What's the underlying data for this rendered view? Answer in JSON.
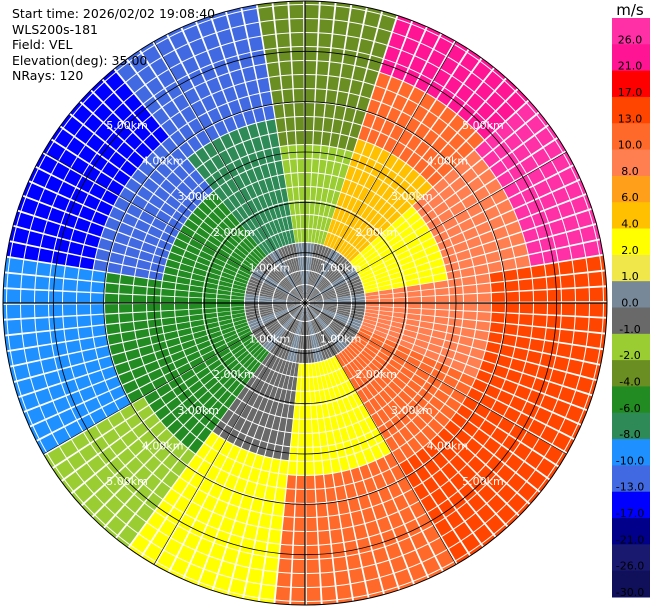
{
  "header": {
    "start_time": "Start time: 2026/02/02 19:08:40",
    "instrument": "WLS200s-181",
    "field": "Field: VEL",
    "elevation": "Elevation(deg): 35.00",
    "nrays": "NRays: 120"
  },
  "range_rings": [
    {
      "km": 1,
      "label": "1.00km"
    },
    {
      "km": 2,
      "label": "2.00km"
    },
    {
      "km": 3,
      "label": "3.00km"
    },
    {
      "km": 4,
      "label": "4.00km"
    },
    {
      "km": 5,
      "label": "5.00km"
    }
  ],
  "max_range_km": 6.0,
  "rays": 120,
  "colorbar": {
    "unit": "m/s",
    "bins": [
      {
        "label": "26.0",
        "color": "#ff2fa6"
      },
      {
        "label": "21.0",
        "color": "#ff1493"
      },
      {
        "label": "17.0",
        "color": "#ff0000"
      },
      {
        "label": "13.0",
        "color": "#ff4500"
      },
      {
        "label": "10.0",
        "color": "#ff6a2a"
      },
      {
        "label": "8.0",
        "color": "#ff7f50"
      },
      {
        "label": "6.0",
        "color": "#ff9f1a"
      },
      {
        "label": "4.0",
        "color": "#ffc000"
      },
      {
        "label": "2.0",
        "color": "#ffff00"
      },
      {
        "label": "1.0",
        "color": "#f0e84a"
      },
      {
        "label": "0.0",
        "color": "#778899"
      },
      {
        "label": "-1.0",
        "color": "#696969"
      },
      {
        "label": "-2.0",
        "color": "#9acd32"
      },
      {
        "label": "-4.0",
        "color": "#6b8e23"
      },
      {
        "label": "-6.0",
        "color": "#228b22"
      },
      {
        "label": "-8.0",
        "color": "#2e8b57"
      },
      {
        "label": "-10.0",
        "color": "#1e90ff"
      },
      {
        "label": "-13.0",
        "color": "#4169e1"
      },
      {
        "label": "-17.0",
        "color": "#0000ff"
      },
      {
        "label": "-21.0",
        "color": "#00008b"
      },
      {
        "label": "-26.0",
        "color": "#191970"
      },
      {
        "label": "-30.0",
        "color": "#10105a"
      }
    ]
  }
}
